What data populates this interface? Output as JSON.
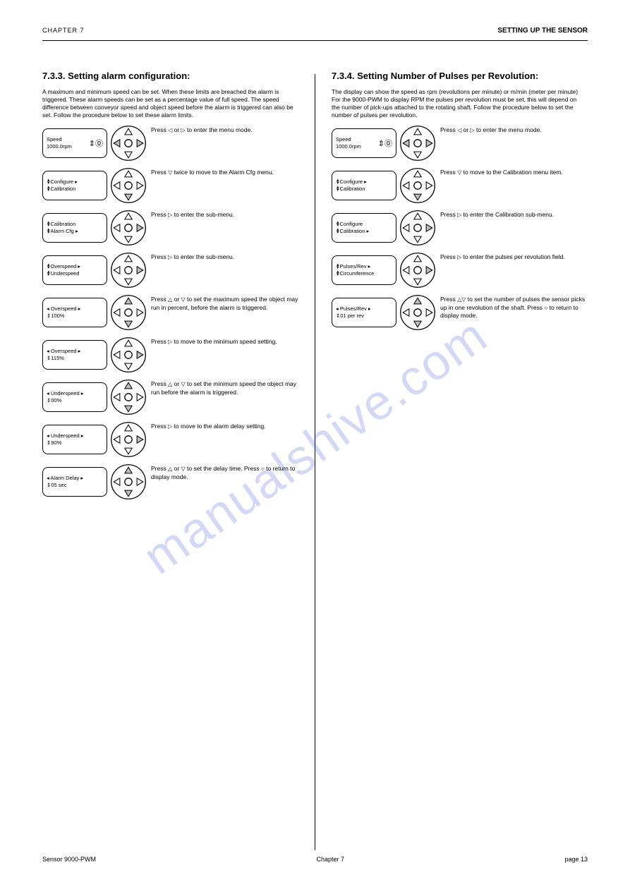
{
  "header": {
    "left_text": "CHAPTER  7",
    "right_text": "SETTING UP THE SENSOR"
  },
  "footer": {
    "left": "Sensor 9000-PWM",
    "center": "Chapter 7",
    "right": "page 13"
  },
  "watermark": "manualshive.com",
  "colors": {
    "highlight": "#bdbdbd",
    "stroke": "#000000",
    "bg": "#ffffff"
  },
  "left_column": {
    "title": "7.3.3.  Setting alarm configuration:",
    "intro": "A maximum and minimum speed can be set. When these limits are breached the alarm is triggered. These alarm speeds can be set as a percentage value of full speed. The speed difference between conveyor speed and object speed before the alarm is triggered can also be set. Follow the procedure below to set these alarm limits.",
    "steps": [
      {
        "lcd_type": "mode",
        "lcd_lines": [
          "  Speed",
          "  1000.0rpm"
        ],
        "mode_icon": "⇕⓪",
        "highlight": [
          "left",
          "right"
        ],
        "text_before_icons": "Press ",
        "icons_inline": [
          {
            "t": "tri-left"
          },
          {
            "raw": " or "
          },
          {
            "t": "tri-right"
          }
        ],
        "text_after_icons": " to enter the menu mode."
      },
      {
        "lcd_type": "menu",
        "lcd_lines": [
          "Configure  ▸",
          "Calibration"
        ],
        "highlight": [
          "down"
        ],
        "text_before_icons": "Press ",
        "icons_inline": [
          {
            "t": "tri-down"
          }
        ],
        "text_after_icons": " twice to move to the Alarm Cfg menu."
      },
      {
        "lcd_type": "menu",
        "lcd_lines": [
          "Calibration",
          "Alarm Cfg  ▸"
        ],
        "highlight": [
          "right"
        ],
        "text_before_icons": "Press ",
        "icons_inline": [
          {
            "t": "tri-right"
          }
        ],
        "text_after_icons": " to enter the sub-menu."
      },
      {
        "lcd_type": "menu",
        "lcd_lines": [
          "Overspeed  ▸",
          "Underspeed"
        ],
        "highlight": [
          "right"
        ],
        "text_before_icons": "Press ",
        "icons_inline": [
          {
            "t": "tri-right"
          }
        ],
        "text_after_icons": " to enter the sub-menu."
      },
      {
        "lcd_type": "edit",
        "lcd_lines": [
          "◂ Overspeed  ▸",
          "  ⇕100%"
        ],
        "highlight": [
          "up",
          "down"
        ],
        "text_before_icons": "Press ",
        "icons_inline": [
          {
            "t": "tri-up"
          },
          {
            "raw": " or "
          },
          {
            "t": "tri-down"
          }
        ],
        "text_after_icons": " to set the maximum speed the object may run in percent, before the alarm is triggered."
      },
      {
        "lcd_type": "edit",
        "lcd_lines": [
          "◂ Overspeed  ▸",
          "  ⇕115%"
        ],
        "highlight": [
          "right"
        ],
        "text_before_icons": "Press ",
        "icons_inline": [
          {
            "t": "tri-right"
          }
        ],
        "text_after_icons": " to move to the minimum speed setting."
      },
      {
        "lcd_type": "edit",
        "lcd_lines": [
          "◂ Underspeed  ▸",
          "  ⇕00%"
        ],
        "highlight": [
          "up",
          "down"
        ],
        "text_before_icons": "Press ",
        "icons_inline": [
          {
            "t": "tri-up"
          },
          {
            "raw": " or "
          },
          {
            "t": "tri-down"
          }
        ],
        "text_after_icons": " to set the minimum speed the object may run before the alarm is triggered."
      },
      {
        "lcd_type": "edit",
        "lcd_lines": [
          "◂ Underspeed  ▸",
          "  ⇕90%"
        ],
        "highlight": [
          "right"
        ],
        "text_before_icons": "Press ",
        "icons_inline": [
          {
            "t": "tri-right"
          }
        ],
        "text_after_icons": " to move to the alarm delay setting."
      },
      {
        "lcd_type": "edit",
        "lcd_lines": [
          "◂ Alarm Delay  ▸",
          "  ⇕05 sec"
        ],
        "highlight": [
          "up",
          "down"
        ],
        "text_before_icons": "Press ",
        "icons_inline": [
          {
            "t": "tri-up"
          },
          {
            "raw": " or "
          },
          {
            "t": "tri-down"
          }
        ],
        "text_after_icons": " to set the delay time. Press ",
        "icons_inline2": [
          {
            "t": "circ"
          }
        ],
        "text_after_icons2": " to return to display mode."
      }
    ]
  },
  "right_column": {
    "title": "7.3.4.  Setting Number of Pulses per Revolution:",
    "intro": "The display can show the speed as rpm (revolutions per minute) or m/min (meter per minute) For the 9000-PWM to display RPM the pulses per revolution must be set, this will depend on the number of pick-ups attached to the rotating shaft. Follow the procedure below to set the number of pulses per revolution.",
    "steps": [
      {
        "lcd_type": "mode",
        "lcd_lines": [
          "  Speed",
          "  1000.0rpm"
        ],
        "mode_icon": "⇕⓪",
        "highlight": [
          "left",
          "right"
        ],
        "text_before_icons": "Press ",
        "icons_inline": [
          {
            "t": "tri-left"
          },
          {
            "raw": " or "
          },
          {
            "t": "tri-right"
          }
        ],
        "text_after_icons": " to enter the menu mode."
      },
      {
        "lcd_type": "menu",
        "lcd_lines": [
          "Configure  ▸",
          "Calibration"
        ],
        "highlight": [
          "down"
        ],
        "text_before_icons": "Press ",
        "icons_inline": [
          {
            "t": "tri-down"
          }
        ],
        "text_after_icons": " to move to the Calibration menu item."
      },
      {
        "lcd_type": "menu",
        "lcd_lines": [
          "Configure",
          "Calibration  ▸"
        ],
        "highlight": [
          "right"
        ],
        "text_before_icons": "Press ",
        "icons_inline": [
          {
            "t": "tri-right"
          }
        ],
        "text_after_icons": " to enter the Calibration sub-menu."
      },
      {
        "lcd_type": "menu",
        "lcd_lines": [
          "Pulses/Rev  ▸",
          "Circumference"
        ],
        "highlight": [
          "right"
        ],
        "text_before_icons": "Press ",
        "icons_inline": [
          {
            "t": "tri-right"
          }
        ],
        "text_after_icons": " to enter the pulses per revolution field."
      },
      {
        "lcd_type": "edit",
        "lcd_lines": [
          "◂ Pulses/Rev  ▸",
          "  ⇕01 per rev"
        ],
        "highlight": [
          "up",
          "down"
        ],
        "text_before_icons": "Press ",
        "icons_inline": [
          {
            "t": "tri-up"
          },
          {
            "t": "tri-down"
          }
        ],
        "text_after_icons": " to set the number of pulses the sensor picks up in one revolution of the shaft. Press ",
        "icons_inline2": [
          {
            "t": "circ"
          }
        ],
        "text_after_icons2": " to return to display mode."
      }
    ]
  }
}
